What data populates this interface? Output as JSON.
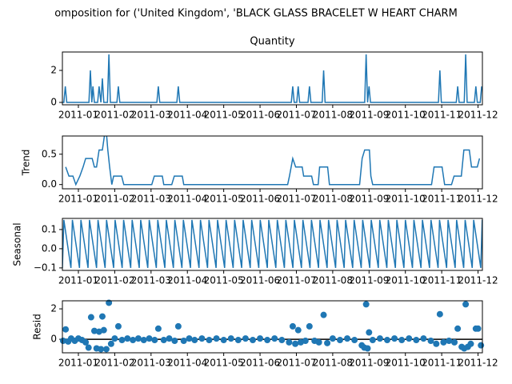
{
  "title": "omposition for ('United Kingdom', 'BLACK GLASS BRACELET W HEART CHARM",
  "chart_data": [
    {
      "type": "line",
      "title": "Quantity",
      "color": "#1f77b4",
      "x": [
        0.56,
        0.6,
        0.64,
        0.68,
        1.29,
        1.33,
        1.37,
        1.4,
        1.44,
        1.53,
        1.57,
        1.62,
        1.66,
        1.7,
        1.8,
        1.84,
        1.88,
        2.06,
        2.1,
        2.14,
        3.16,
        3.2,
        3.24,
        3.71,
        3.75,
        3.79,
        6.86,
        6.9,
        6.94,
        7.01,
        7.05,
        7.09,
        7.32,
        7.36,
        7.4,
        7.71,
        7.75,
        7.79,
        8.88,
        8.92,
        8.96,
        9.0,
        9.04,
        10.91,
        10.95,
        10.99,
        11.4,
        11.44,
        11.48,
        11.62,
        11.66,
        11.7,
        11.9,
        11.94,
        11.98,
        12.06,
        12.1
      ],
      "values": [
        0,
        0,
        1,
        0,
        0,
        2,
        0,
        1,
        0,
        0,
        1,
        0,
        1.5,
        0,
        0,
        3,
        0,
        0,
        1,
        0,
        0,
        1,
        0,
        0,
        1,
        0,
        0,
        1,
        0,
        0,
        1,
        0,
        0,
        1,
        0,
        0,
        2,
        0,
        0,
        3,
        0,
        1,
        0,
        0,
        2,
        0,
        0,
        1,
        0,
        0,
        3,
        0,
        0,
        1,
        0,
        0,
        1
      ],
      "xlim": [
        0.56,
        12.12
      ],
      "xticks": [
        {
          "value": 1,
          "label": "2011-01"
        },
        {
          "value": 2,
          "label": "2011-02"
        },
        {
          "value": 3,
          "label": "2011-03"
        },
        {
          "value": 4,
          "label": "2011-04"
        },
        {
          "value": 5,
          "label": "2011-05"
        },
        {
          "value": 6,
          "label": "2011-06"
        },
        {
          "value": 7,
          "label": "2011-07"
        },
        {
          "value": 8,
          "label": "2011-08"
        },
        {
          "value": 9,
          "label": "2011-09"
        },
        {
          "value": 10,
          "label": "2011-10"
        },
        {
          "value": 11,
          "label": "2011-11"
        },
        {
          "value": 12,
          "label": "2011-12"
        }
      ],
      "ylim": [
        -0.15,
        3.15
      ],
      "yticks": [
        0,
        2
      ]
    },
    {
      "type": "line",
      "ylabel": "Trend",
      "color": "#1f77b4",
      "x": [
        0.65,
        0.74,
        0.85,
        0.93,
        1.04,
        1.13,
        1.2,
        1.38,
        1.44,
        1.5,
        1.57,
        1.66,
        1.73,
        1.77,
        1.81,
        1.86,
        1.92,
        1.97,
        2.19,
        2.25,
        3.02,
        3.09,
        3.31,
        3.35,
        3.57,
        3.64,
        3.86,
        3.9,
        6.76,
        6.81,
        6.9,
        6.98,
        7.16,
        7.2,
        7.42,
        7.47,
        7.6,
        7.64,
        7.86,
        7.91,
        8.74,
        8.81,
        8.88,
        9.01,
        9.05,
        9.1,
        10.72,
        10.79,
        11.01,
        11.08,
        11.27,
        11.34,
        11.54,
        11.61,
        11.76,
        11.82,
        11.98,
        12.04
      ],
      "values": [
        0.29,
        0.14,
        0.14,
        0,
        0.14,
        0.29,
        0.43,
        0.43,
        0.29,
        0.29,
        0.57,
        0.57,
        0.86,
        0.86,
        0.57,
        0.29,
        0,
        0.14,
        0.14,
        0,
        0,
        0.14,
        0.14,
        0,
        0,
        0.14,
        0.14,
        0,
        0,
        0.14,
        0.43,
        0.29,
        0.29,
        0.14,
        0.14,
        0,
        0,
        0.29,
        0.29,
        0,
        0,
        0.43,
        0.57,
        0.57,
        0.14,
        0,
        0,
        0.29,
        0.29,
        0,
        0,
        0.14,
        0.14,
        0.57,
        0.57,
        0.29,
        0.29,
        0.43
      ],
      "xlim": [
        0.56,
        12.12
      ],
      "xticks": [
        {
          "value": 1,
          "label": "2011-01"
        },
        {
          "value": 2,
          "label": "2011-02"
        },
        {
          "value": 3,
          "label": "2011-03"
        },
        {
          "value": 4,
          "label": "2011-04"
        },
        {
          "value": 5,
          "label": "2011-05"
        },
        {
          "value": 6,
          "label": "2011-06"
        },
        {
          "value": 7,
          "label": "2011-07"
        },
        {
          "value": 8,
          "label": "2011-08"
        },
        {
          "value": 9,
          "label": "2011-09"
        },
        {
          "value": 10,
          "label": "2011-10"
        },
        {
          "value": 11,
          "label": "2011-11"
        },
        {
          "value": 12,
          "label": "2011-12"
        }
      ],
      "ylim": [
        -0.07,
        0.8
      ],
      "yticks": [
        {
          "value": 0,
          "label": "0.0"
        },
        {
          "value": 0.5,
          "label": "0.5"
        }
      ]
    },
    {
      "type": "line",
      "ylabel": "Seasonal",
      "color": "#1f77b4",
      "x": [
        0.56,
        0.6,
        0.795,
        0.835,
        1.03,
        1.07,
        1.265,
        1.305,
        1.5,
        1.54,
        1.735,
        1.775,
        1.97,
        2.01,
        2.205,
        2.245,
        2.44,
        2.48,
        2.675,
        2.715,
        2.91,
        2.95,
        3.145,
        3.185,
        3.38,
        3.42,
        3.615,
        3.655,
        3.85,
        3.89,
        4.085,
        4.125,
        4.32,
        4.36,
        4.555,
        4.595,
        4.79,
        4.83,
        5.025,
        5.065,
        5.26,
        5.3,
        5.495,
        5.535,
        5.73,
        5.77,
        5.965,
        6.005,
        6.2,
        6.24,
        6.435,
        6.475,
        6.67,
        6.71,
        6.905,
        6.945,
        7.14,
        7.18,
        7.375,
        7.415,
        7.61,
        7.65,
        7.845,
        7.885,
        8.08,
        8.12,
        8.315,
        8.355,
        8.55,
        8.59,
        8.785,
        8.825,
        9.02,
        9.06,
        9.255,
        9.295,
        9.49,
        9.53,
        9.725,
        9.765,
        9.96,
        10.0,
        10.195,
        10.235,
        10.43,
        10.47,
        10.665,
        10.705,
        10.9,
        10.94,
        11.135,
        11.175,
        11.37,
        11.41,
        11.605,
        11.645,
        11.84,
        11.88,
        12.075,
        12.115
      ],
      "values": [
        -0.1,
        0.15,
        -0.1,
        0.15,
        -0.1,
        0.15,
        -0.1,
        0.15,
        -0.1,
        0.15,
        -0.1,
        0.15,
        -0.1,
        0.15,
        -0.1,
        0.15,
        -0.1,
        0.15,
        -0.1,
        0.15,
        -0.1,
        0.15,
        -0.1,
        0.15,
        -0.1,
        0.15,
        -0.1,
        0.15,
        -0.1,
        0.15,
        -0.1,
        0.15,
        -0.1,
        0.15,
        -0.1,
        0.15,
        -0.1,
        0.15,
        -0.1,
        0.15,
        -0.1,
        0.15,
        -0.1,
        0.15,
        -0.1,
        0.15,
        -0.1,
        0.15,
        -0.1,
        0.15,
        -0.1,
        0.15,
        -0.1,
        0.15,
        -0.1,
        0.15,
        -0.1,
        0.15,
        -0.1,
        0.15,
        -0.1,
        0.15,
        -0.1,
        0.15,
        -0.1,
        0.15,
        -0.1,
        0.15,
        -0.1,
        0.15,
        -0.1,
        0.15,
        -0.1,
        0.15,
        -0.1,
        0.15,
        -0.1,
        0.15,
        -0.1,
        0.15,
        -0.1,
        0.15,
        -0.1,
        0.15,
        -0.1,
        0.15,
        -0.1,
        0.15,
        -0.1,
        0.15,
        -0.1,
        0.15,
        -0.1,
        0.15,
        -0.1,
        0.15,
        -0.1,
        0.15,
        -0.1,
        0.15
      ],
      "xlim": [
        0.56,
        12.12
      ],
      "xticks": [
        {
          "value": 1,
          "label": "2011-01"
        },
        {
          "value": 2,
          "label": "2011-02"
        },
        {
          "value": 3,
          "label": "2011-03"
        },
        {
          "value": 4,
          "label": "2011-04"
        },
        {
          "value": 5,
          "label": "2011-05"
        },
        {
          "value": 6,
          "label": "2011-06"
        },
        {
          "value": 7,
          "label": "2011-07"
        },
        {
          "value": 8,
          "label": "2011-08"
        },
        {
          "value": 9,
          "label": "2011-09"
        },
        {
          "value": 10,
          "label": "2011-10"
        },
        {
          "value": 11,
          "label": "2011-11"
        },
        {
          "value": 12,
          "label": "2011-12"
        }
      ],
      "ylim": [
        -0.113,
        0.158
      ],
      "yticks": [
        {
          "value": -0.1,
          "label": "−0.1"
        },
        {
          "value": 0,
          "label": "0.0"
        },
        {
          "value": 0.1,
          "label": "0.1"
        }
      ]
    },
    {
      "type": "scatter",
      "ylabel": "Resid",
      "color": "#1f77b4",
      "zero_line": 0,
      "zero_line_color": "#000000",
      "x": [
        0.58,
        0.65,
        0.72,
        0.8,
        0.9,
        1.0,
        1.1,
        1.2,
        1.28,
        1.35,
        1.44,
        1.5,
        1.57,
        1.62,
        1.66,
        1.7,
        1.77,
        1.84,
        1.9,
        2.0,
        2.1,
        2.2,
        2.35,
        2.5,
        2.65,
        2.8,
        2.95,
        3.1,
        3.2,
        3.35,
        3.5,
        3.65,
        3.75,
        3.9,
        4.05,
        4.2,
        4.4,
        4.6,
        4.8,
        5.0,
        5.2,
        5.4,
        5.6,
        5.8,
        6.0,
        6.2,
        6.4,
        6.6,
        6.8,
        6.9,
        6.97,
        7.05,
        7.12,
        7.25,
        7.36,
        7.5,
        7.62,
        7.75,
        7.85,
        8.0,
        8.2,
        8.4,
        8.6,
        8.8,
        8.87,
        8.92,
        8.96,
        9.0,
        9.1,
        9.3,
        9.5,
        9.7,
        9.9,
        10.1,
        10.3,
        10.5,
        10.7,
        10.85,
        10.95,
        11.05,
        11.2,
        11.35,
        11.44,
        11.55,
        11.62,
        11.66,
        11.72,
        11.8,
        11.94,
        12.0,
        12.08
      ],
      "values": [
        -0.1,
        0.65,
        -0.15,
        0.05,
        -0.1,
        0.05,
        -0.05,
        -0.2,
        -0.55,
        1.45,
        0.55,
        -0.6,
        0.5,
        -0.65,
        1.5,
        0.6,
        -0.65,
        2.4,
        -0.3,
        0.05,
        0.85,
        -0.05,
        0.05,
        -0.05,
        0.05,
        -0.05,
        0.05,
        -0.05,
        0.7,
        -0.05,
        0.05,
        -0.1,
        0.85,
        -0.1,
        0.05,
        -0.05,
        0.05,
        -0.05,
        0.05,
        -0.05,
        0.05,
        -0.05,
        0.05,
        -0.05,
        0.05,
        -0.05,
        0.05,
        -0.05,
        -0.2,
        0.85,
        -0.3,
        0.6,
        -0.2,
        -0.1,
        0.85,
        -0.1,
        -0.2,
        1.6,
        -0.25,
        0.05,
        -0.05,
        0.05,
        -0.05,
        -0.4,
        -0.55,
        2.3,
        -0.6,
        0.45,
        -0.05,
        0.05,
        -0.05,
        0.05,
        -0.05,
        0.05,
        -0.05,
        0.05,
        -0.1,
        -0.3,
        1.65,
        -0.2,
        -0.1,
        -0.2,
        0.7,
        -0.5,
        -0.6,
        2.3,
        -0.5,
        -0.3,
        0.7,
        0.7,
        -0.4
      ],
      "xlim": [
        0.56,
        12.12
      ],
      "xticks": [
        {
          "value": 1,
          "label": "2011-01"
        },
        {
          "value": 2,
          "label": "2011-02"
        },
        {
          "value": 3,
          "label": "2011-03"
        },
        {
          "value": 4,
          "label": "2011-04"
        },
        {
          "value": 5,
          "label": "2011-05"
        },
        {
          "value": 6,
          "label": "2011-06"
        },
        {
          "value": 7,
          "label": "2011-07"
        },
        {
          "value": 8,
          "label": "2011-08"
        },
        {
          "value": 9,
          "label": "2011-09"
        },
        {
          "value": 10,
          "label": "2011-10"
        },
        {
          "value": 11,
          "label": "2011-11"
        },
        {
          "value": 12,
          "label": "2011-12"
        }
      ],
      "ylim": [
        -0.89,
        2.53
      ],
      "yticks": [
        0,
        2
      ]
    }
  ]
}
